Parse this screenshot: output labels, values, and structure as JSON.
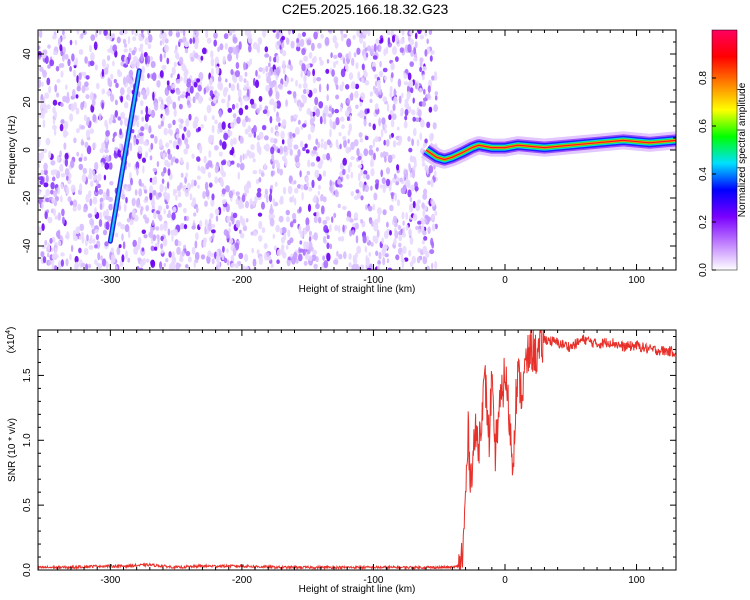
{
  "title": "C2E5.2025.166.18.32.G23",
  "chart_data": [
    {
      "type": "heatmap",
      "xlabel": "Height of straight line (km)",
      "ylabel": "Frequency (Hz)",
      "xlim": [
        -355,
        130
      ],
      "ylim": [
        -50,
        50
      ],
      "x_ticks": [
        -300,
        -200,
        -100,
        0,
        100
      ],
      "y_ticks": [
        -40,
        -20,
        0,
        20,
        40
      ],
      "noise_region_x": [
        -355,
        -52
      ],
      "signal_streak": {
        "from": [
          -300,
          -38
        ],
        "to": [
          -278,
          33
        ]
      },
      "doppler_line": [
        [
          -60,
          0
        ],
        [
          -52,
          -3
        ],
        [
          -46,
          -4
        ],
        [
          -40,
          -3
        ],
        [
          -32,
          -1
        ],
        [
          -25,
          1
        ],
        [
          -20,
          2
        ],
        [
          -10,
          1
        ],
        [
          0,
          1
        ],
        [
          10,
          2
        ],
        [
          30,
          1
        ],
        [
          50,
          2
        ],
        [
          70,
          3
        ],
        [
          90,
          4
        ],
        [
          110,
          3
        ],
        [
          130,
          4
        ]
      ],
      "colorbar": {
        "label": "Normalized spectral amplitude",
        "ticks": [
          "0.0",
          "0.2",
          "0.4",
          "0.6",
          "0.8"
        ],
        "range": [
          0,
          1
        ],
        "colors": [
          "#ffffff",
          "#c080ff",
          "#7a00ff",
          "#0000ff",
          "#00e0ff",
          "#00ff00",
          "#ffff00",
          "#ff8000",
          "#ff0000",
          "#ff0060"
        ]
      }
    },
    {
      "type": "line",
      "xlabel": "Height of straight line (km)",
      "ylabel": "SNR (10 * v/v)",
      "y_multiplier": "(x10",
      "y_multiplier_exp": "4",
      "y_multiplier_close": ")",
      "xlim": [
        -355,
        130
      ],
      "ylim": [
        0,
        1.85
      ],
      "x_ticks": [
        -300,
        -200,
        -100,
        0,
        100
      ],
      "y_ticks": [
        "0.0",
        "0.5",
        "1.0",
        "1.5"
      ],
      "line_color": "#e8302a",
      "series": [
        {
          "x": [
            -355,
            -330,
            -310,
            -290,
            -270,
            -250,
            -230,
            -200,
            -170,
            -140,
            -110,
            -90,
            -70,
            -50,
            -40,
            -35,
            -32,
            -30,
            -28,
            -26,
            -24,
            -22,
            -20,
            -18,
            -15,
            -12,
            -10,
            -8,
            -5,
            -2,
            0,
            3,
            6,
            8,
            10,
            13,
            16,
            20,
            25,
            30,
            40,
            50,
            60,
            70,
            80,
            90,
            100,
            110,
            120,
            130
          ],
          "y": [
            0.02,
            0.02,
            0.03,
            0.03,
            0.04,
            0.02,
            0.03,
            0.03,
            0.02,
            0.02,
            0.02,
            0.02,
            0.02,
            0.02,
            0.02,
            0.03,
            0.12,
            0.55,
            1.05,
            0.7,
            0.95,
            1.05,
            0.95,
            1.2,
            1.45,
            1.0,
            1.5,
            0.85,
            1.2,
            1.35,
            1.55,
            1.2,
            0.8,
            1.3,
            1.5,
            1.35,
            1.6,
            1.7,
            1.65,
            1.78,
            1.75,
            1.72,
            1.78,
            1.74,
            1.76,
            1.72,
            1.73,
            1.7,
            1.69,
            1.68
          ]
        }
      ]
    }
  ]
}
